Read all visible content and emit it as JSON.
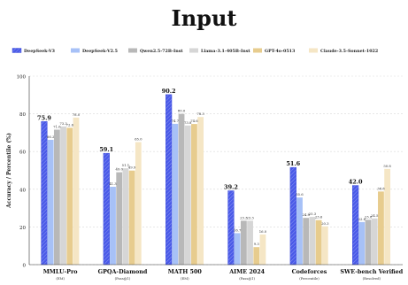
{
  "page": {
    "title": "Input"
  },
  "chart_data": {
    "type": "bar",
    "title": "",
    "xlabel": "",
    "ylabel": "Accuracy / Percentile (%)",
    "ylim": [
      0,
      100
    ],
    "yticks": [
      0,
      20,
      40,
      60,
      80,
      100
    ],
    "grid": true,
    "legend_position": "top",
    "categories": [
      "MMLU-Pro",
      "GPQA-Diamond",
      "MATH 500",
      "AIME 2024",
      "Codeforces",
      "SWE-bench Verified"
    ],
    "category_sublabels": [
      "(EM)",
      "(Pass@1)",
      "(EM)",
      "(Pass@1)",
      "(Percentile)",
      "(Resolved)"
    ],
    "series": [
      {
        "name": "DeepSeek-V3",
        "values": [
          75.9,
          59.1,
          90.2,
          39.2,
          51.6,
          42.0
        ],
        "color": "#4a5ae8",
        "hatch": true
      },
      {
        "name": "DeepSeek-V2.5",
        "values": [
          66.2,
          41.3,
          74.7,
          16.7,
          35.6,
          22.6
        ],
        "color": "#a7c1f7",
        "hatch": false
      },
      {
        "name": "Qwen2.5-72B-Inst",
        "values": [
          71.6,
          49.0,
          80.0,
          23.3,
          24.8,
          23.8
        ],
        "color": "#b8b8b8",
        "hatch": false
      },
      {
        "name": "Llama-3.1-405B-Inst",
        "values": [
          73.3,
          51.1,
          73.8,
          23.3,
          25.3,
          24.5
        ],
        "color": "#d6d6d6",
        "hatch": false
      },
      {
        "name": "GPT-4o-0513",
        "values": [
          72.6,
          49.9,
          74.6,
          9.3,
          23.6,
          38.8
        ],
        "color": "#e7cc8e",
        "hatch": false
      },
      {
        "name": "Claude-3.5-Sonnet-1022",
        "values": [
          78.0,
          65.0,
          78.3,
          16.0,
          20.3,
          50.8
        ],
        "color": "#f5e6c5",
        "hatch": false
      }
    ]
  }
}
